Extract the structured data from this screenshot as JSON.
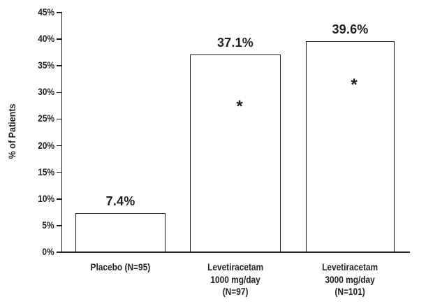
{
  "figure": {
    "background": "#ffffff",
    "ink_color": "#231f20",
    "bar_fill": "#ffffff",
    "bar_border": "#231f20"
  },
  "chart_data": {
    "type": "bar",
    "title": "",
    "xlabel": "",
    "ylabel": "% of Patients",
    "ylim": [
      0,
      45
    ],
    "ytick_step": 5,
    "ytick_labels": [
      "0%",
      "5%",
      "10%",
      "15%",
      "20%",
      "25%",
      "30%",
      "35%",
      "40%",
      "45%"
    ],
    "grid": false,
    "legend": "none",
    "categories": [
      "Placebo (N=95)",
      "Levetiracetam 1000 mg/day (N=97)",
      "Levetiracetam 3000 mg/day (N=101)"
    ],
    "category_label_lines": [
      [
        "Placebo (N=95)"
      ],
      [
        "Levetiracetam",
        "1000 mg/day",
        "(N=97)"
      ],
      [
        "Levetiracetam",
        "3000 mg/day",
        "(N=101)"
      ]
    ],
    "values": [
      7.4,
      37.1,
      39.6
    ],
    "value_labels": [
      "7.4%",
      "37.1%",
      "39.6%"
    ],
    "annotations": [
      {
        "bar_index": 1,
        "symbol": "*"
      },
      {
        "bar_index": 2,
        "symbol": "*"
      }
    ]
  }
}
